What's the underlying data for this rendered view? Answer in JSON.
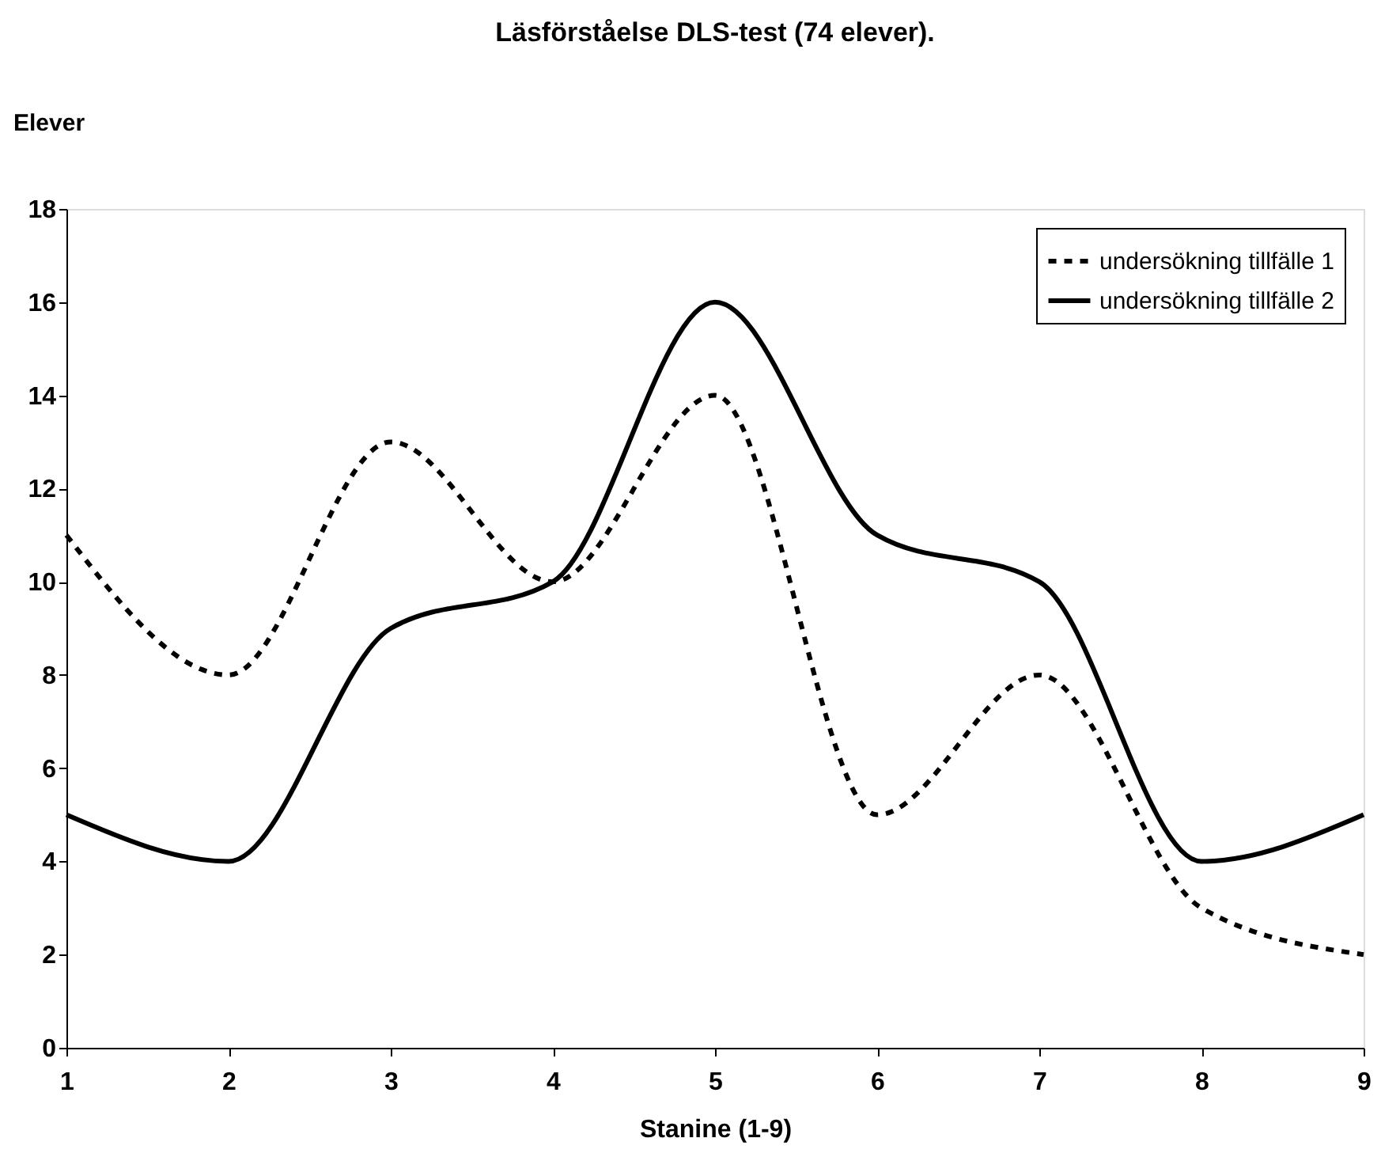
{
  "chart_data": {
    "type": "line",
    "title": "Läsförståelse DLS-test (74 elever).",
    "xlabel": "Stanine (1-9)",
    "ylabel": "Elever",
    "x": [
      1,
      2,
      3,
      4,
      5,
      6,
      7,
      8,
      9
    ],
    "series": [
      {
        "name": "undersökning tillfälle 1",
        "color": "#000000",
        "line_style": "dashed",
        "values": [
          11,
          8,
          13,
          10,
          14,
          5,
          8,
          3,
          2
        ]
      },
      {
        "name": "undersökning tillfälle 2",
        "color": "#000000",
        "line_style": "solid",
        "values": [
          5,
          4,
          9,
          10,
          16,
          11,
          10,
          4,
          5
        ]
      }
    ],
    "xlim": [
      1,
      9
    ],
    "xticks": [
      1,
      2,
      3,
      4,
      5,
      6,
      7,
      8,
      9
    ],
    "ylim": [
      0,
      18
    ],
    "yticks": [
      0,
      2,
      4,
      6,
      8,
      10,
      12,
      14,
      16,
      18
    ],
    "grid": false,
    "legend": "top right"
  }
}
